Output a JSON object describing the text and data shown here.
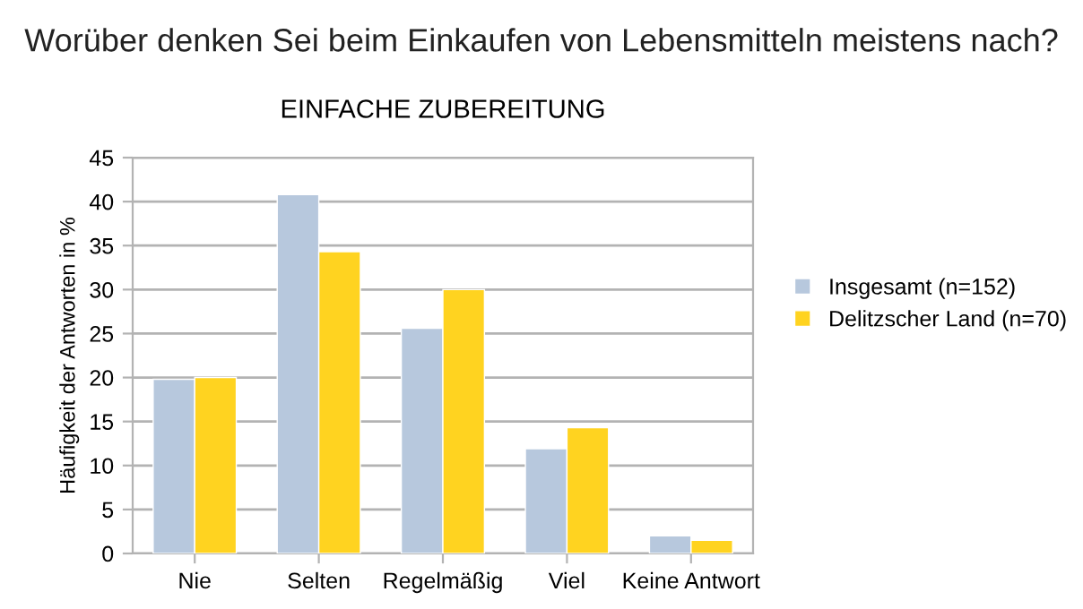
{
  "chart_data": {
    "type": "bar",
    "title": "Worüber denken Sei beim Einkaufen von Lebensmitteln meistens nach?",
    "subtitle": "EINFACHE ZUBEREITUNG",
    "ylabel": "Häufigkeit der Antworten in %",
    "categories": [
      "Nie",
      "Selten",
      "Regelmäßig",
      "Viel",
      "Keine Antwort"
    ],
    "series": [
      {
        "name": "Insgesamt (n=152)",
        "color": "#b7c8dd",
        "values": [
          19.8,
          40.8,
          25.6,
          11.9,
          2.0
        ]
      },
      {
        "name": "Delitzscher Land (n=70)",
        "color": "#ffd320",
        "values": [
          20.0,
          34.3,
          30.0,
          14.3,
          1.5
        ]
      }
    ],
    "ylim": [
      0,
      45
    ],
    "yticks": [
      0,
      5,
      10,
      15,
      20,
      25,
      30,
      35,
      40,
      45
    ],
    "grid": "y",
    "legend": "right"
  }
}
